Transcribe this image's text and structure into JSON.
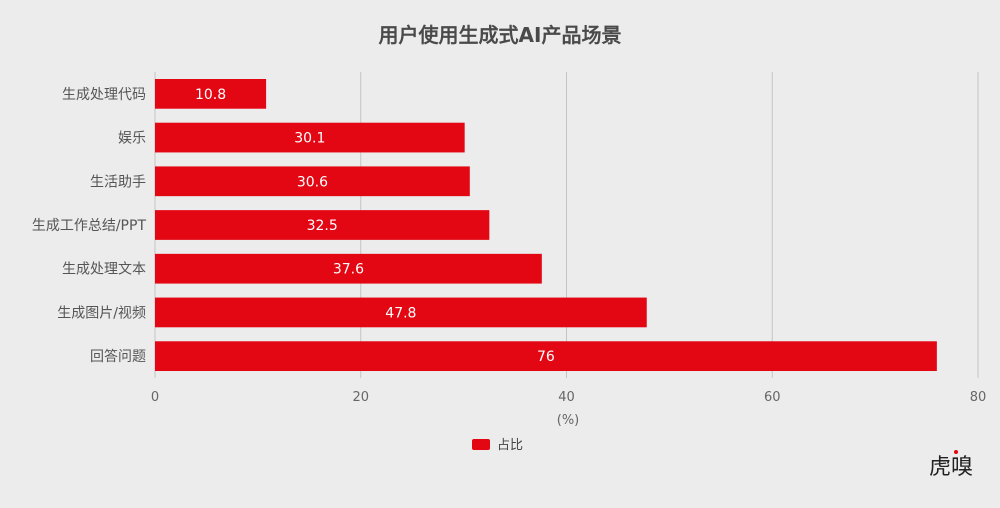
{
  "chart_data": {
    "type": "bar",
    "orientation": "horizontal",
    "title": "用户使用生成式AI产品场景",
    "categories": [
      "生成处理代码",
      "娱乐",
      "生活助手",
      "生成工作总结/PPT",
      "生成处理文本",
      "生成图片/视频",
      "回答问题"
    ],
    "series": [
      {
        "name": "占比",
        "values": [
          10.8,
          30.1,
          30.6,
          32.5,
          37.6,
          47.8,
          76
        ],
        "color": "#e30613"
      }
    ],
    "xlabel": "(%)",
    "xlim": [
      0,
      80
    ],
    "xticks": [
      0,
      20,
      40,
      60,
      80
    ],
    "grid": "vertical",
    "legend_position": "bottom-center"
  },
  "logo_text": "虎嗅"
}
